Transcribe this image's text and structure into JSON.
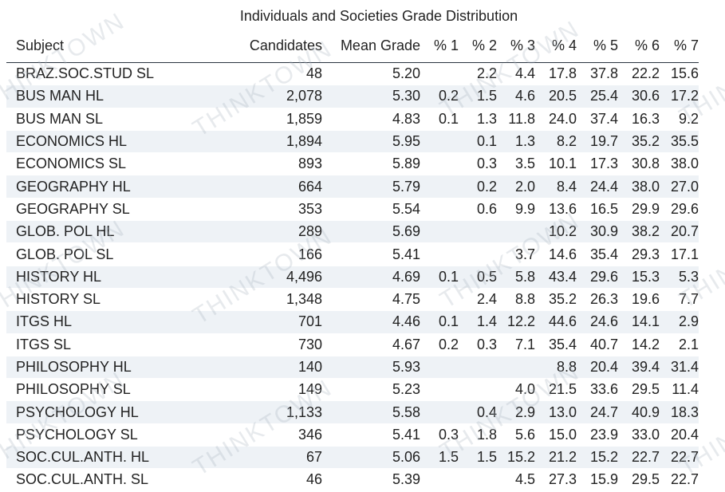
{
  "title": "Individuals and Societies Grade Distribution",
  "headers": [
    "Subject",
    "Candidates",
    "Mean Grade",
    "% 1",
    "% 2",
    "% 3",
    "% 4",
    "% 5",
    "% 6",
    "% 7"
  ],
  "watermark_text": "THINKTOWN",
  "rows": [
    [
      "BRAZ.SOC.STUD SL",
      "48",
      "5.20",
      "",
      "2.2",
      "4.4",
      "17.8",
      "37.8",
      "22.2",
      "15.6"
    ],
    [
      "BUS MAN HL",
      "2,078",
      "5.30",
      "0.2",
      "1.5",
      "4.6",
      "20.5",
      "25.4",
      "30.6",
      "17.2"
    ],
    [
      "BUS MAN SL",
      "1,859",
      "4.83",
      "0.1",
      "1.3",
      "11.8",
      "24.0",
      "37.4",
      "16.3",
      "9.2"
    ],
    [
      "ECONOMICS HL",
      "1,894",
      "5.95",
      "",
      "0.1",
      "1.3",
      "8.2",
      "19.7",
      "35.2",
      "35.5"
    ],
    [
      "ECONOMICS SL",
      "893",
      "5.89",
      "",
      "0.3",
      "3.5",
      "10.1",
      "17.3",
      "30.8",
      "38.0"
    ],
    [
      "GEOGRAPHY HL",
      "664",
      "5.79",
      "",
      "0.2",
      "2.0",
      "8.4",
      "24.4",
      "38.0",
      "27.0"
    ],
    [
      "GEOGRAPHY SL",
      "353",
      "5.54",
      "",
      "0.6",
      "9.9",
      "13.6",
      "16.5",
      "29.9",
      "29.6"
    ],
    [
      "GLOB. POL HL",
      "289",
      "5.69",
      "",
      "",
      "",
      "10.2",
      "30.9",
      "38.2",
      "20.7"
    ],
    [
      "GLOB. POL SL",
      "166",
      "5.41",
      "",
      "",
      "3.7",
      "14.6",
      "35.4",
      "29.3",
      "17.1"
    ],
    [
      "HISTORY HL",
      "4,496",
      "4.69",
      "0.1",
      "0.5",
      "5.8",
      "43.4",
      "29.6",
      "15.3",
      "5.3"
    ],
    [
      "HISTORY SL",
      "1,348",
      "4.75",
      "",
      "2.4",
      "8.8",
      "35.2",
      "26.3",
      "19.6",
      "7.7"
    ],
    [
      "ITGS HL",
      "701",
      "4.46",
      "0.1",
      "1.4",
      "12.2",
      "44.6",
      "24.6",
      "14.1",
      "2.9"
    ],
    [
      "ITGS SL",
      "730",
      "4.67",
      "0.2",
      "0.3",
      "7.1",
      "35.4",
      "40.7",
      "14.2",
      "2.1"
    ],
    [
      "PHILOSOPHY HL",
      "140",
      "5.93",
      "",
      "",
      "",
      "8.8",
      "20.4",
      "39.4",
      "31.4"
    ],
    [
      "PHILOSOPHY SL",
      "149",
      "5.23",
      "",
      "",
      "4.0",
      "21.5",
      "33.6",
      "29.5",
      "11.4"
    ],
    [
      "PSYCHOLOGY HL",
      "1,133",
      "5.58",
      "",
      "0.4",
      "2.9",
      "13.0",
      "24.7",
      "40.9",
      "18.3"
    ],
    [
      "PSYCHOLOGY SL",
      "346",
      "5.41",
      "0.3",
      "1.8",
      "5.6",
      "15.0",
      "23.9",
      "33.0",
      "20.4"
    ],
    [
      "SOC.CUL.ANTH. HL",
      "67",
      "5.06",
      "1.5",
      "1.5",
      "15.2",
      "21.2",
      "15.2",
      "22.7",
      "22.7"
    ],
    [
      "SOC.CUL.ANTH. SL",
      "46",
      "5.39",
      "",
      "",
      "4.5",
      "27.3",
      "15.9",
      "29.5",
      "22.7"
    ]
  ]
}
